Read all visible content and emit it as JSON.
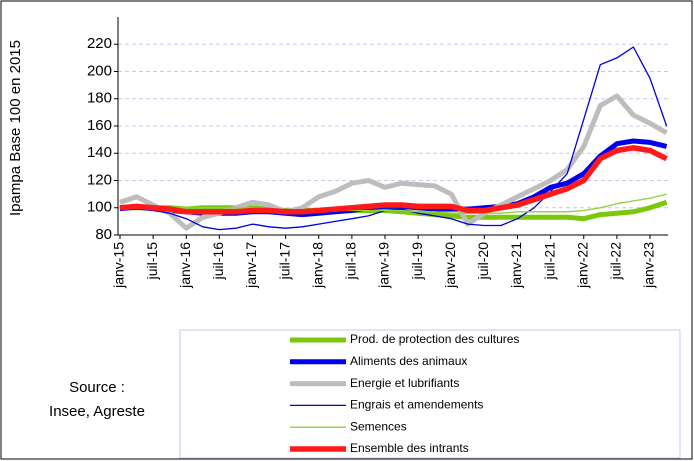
{
  "chart_data": {
    "type": "line",
    "y_label": "Ipampa Base 100 en 2015",
    "annotation": [
      "Source :",
      "Insee, Agreste"
    ],
    "categories": [
      "janv-15",
      null,
      "juil-15",
      null,
      "janv-16",
      null,
      "juil-16",
      null,
      "janv-17",
      null,
      "juil-17",
      null,
      "janv-18",
      null,
      "juil-18",
      null,
      "janv-19",
      null,
      "juil-19",
      null,
      "janv-20",
      null,
      "juil-20",
      null,
      "janv-21",
      null,
      "juil-21",
      null,
      "janv-22",
      null,
      "juil-22",
      null,
      "janv-23",
      null
    ],
    "series": [
      {
        "name": "Prod. de protection des cultures",
        "color": "#7ac70c",
        "width": 5,
        "values": [
          100,
          100,
          100,
          100,
          99,
          100,
          100,
          100,
          100,
          99,
          98,
          98,
          98,
          98,
          98,
          98,
          98,
          97,
          96,
          95,
          94,
          93,
          93,
          93,
          93,
          93,
          93,
          93,
          92,
          95,
          96,
          97,
          100,
          104
        ]
      },
      {
        "name": "Aliments des animaux",
        "color": "#0000ee",
        "width": 5,
        "values": [
          100,
          101,
          100,
          98,
          97,
          96,
          96,
          96,
          97,
          97,
          96,
          95,
          96,
          97,
          98,
          100,
          101,
          101,
          100,
          99,
          99,
          99,
          100,
          101,
          103,
          108,
          115,
          118,
          125,
          138,
          147,
          149,
          148,
          145
        ]
      },
      {
        "name": "Energie et lubrifiants",
        "color": "#bdbdbd",
        "width": 5,
        "values": [
          104,
          108,
          102,
          96,
          85,
          93,
          96,
          100,
          104,
          102,
          97,
          100,
          108,
          112,
          118,
          120,
          115,
          118,
          117,
          116,
          110,
          88,
          96,
          102,
          108,
          114,
          120,
          128,
          145,
          175,
          182,
          168,
          162,
          155
        ]
      },
      {
        "name": "Engrais et amendements",
        "color": "#0000dd",
        "width": 1.3,
        "values": [
          98,
          99,
          98,
          96,
          92,
          86,
          84,
          85,
          88,
          86,
          85,
          86,
          88,
          90,
          92,
          94,
          98,
          99,
          96,
          94,
          92,
          88,
          87,
          87,
          92,
          100,
          112,
          125,
          165,
          205,
          210,
          218,
          195,
          160
        ]
      },
      {
        "name": "Semences",
        "color": "#8fd13a",
        "width": 1.3,
        "values": [
          100,
          100,
          100,
          100,
          100,
          100,
          100,
          100,
          100,
          99,
          98,
          98,
          98,
          98,
          98,
          98,
          98,
          98,
          97,
          97,
          96,
          96,
          96,
          96,
          97,
          97,
          97,
          97,
          98,
          100,
          103,
          105,
          107,
          110
        ]
      },
      {
        "name": "Ensemble des intrants",
        "color": "#ff1a1a",
        "width": 5.5,
        "values": [
          100,
          101,
          100,
          99,
          97,
          97,
          97,
          97,
          98,
          98,
          97,
          97,
          98,
          99,
          100,
          101,
          102,
          102,
          101,
          101,
          101,
          98,
          98,
          100,
          102,
          106,
          110,
          114,
          120,
          136,
          142,
          144,
          142,
          136
        ]
      }
    ],
    "ylim": [
      80,
      240
    ],
    "yticks": [
      80,
      100,
      120,
      140,
      160,
      180,
      200,
      220
    ],
    "grid": true
  }
}
